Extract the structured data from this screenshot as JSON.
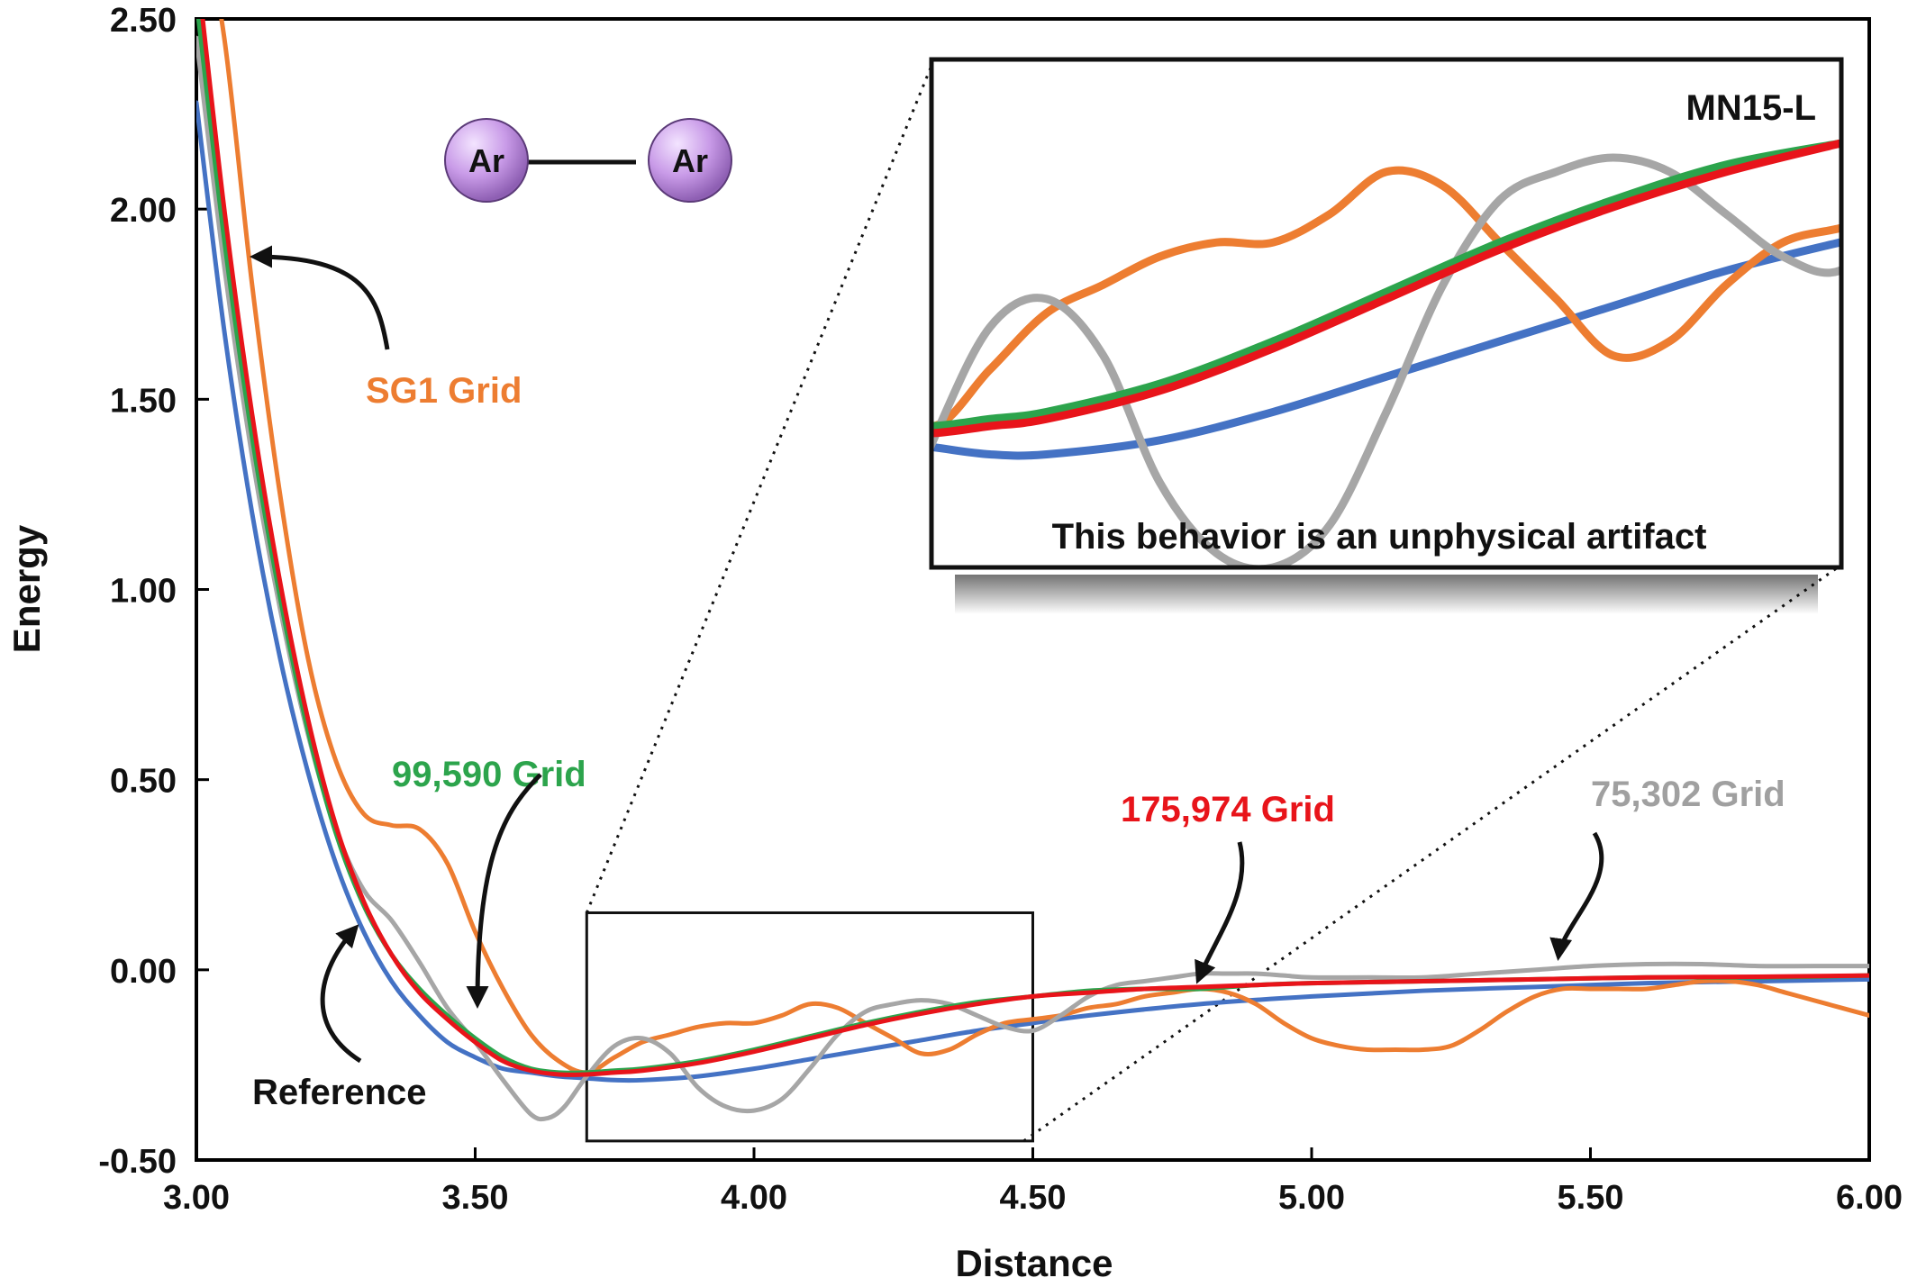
{
  "chart_data": {
    "type": "line",
    "title": "",
    "xlabel": "Distance",
    "ylabel": "Energy",
    "xlim": [
      3.0,
      6.0
    ],
    "ylim": [
      -0.5,
      2.5
    ],
    "x_ticks": [
      "3.00",
      "3.50",
      "4.00",
      "4.50",
      "5.00",
      "5.50",
      "6.00"
    ],
    "y_ticks": [
      "2.50",
      "2.00",
      "1.50",
      "1.00",
      "0.50",
      "0.00",
      "-0.50"
    ],
    "grid": false,
    "legend": "none (direct labels with arrows)",
    "series": [
      {
        "name": "Reference",
        "color": "#4472c4",
        "x": [
          3.0,
          3.05,
          3.1,
          3.15,
          3.2,
          3.25,
          3.3,
          3.35,
          3.4,
          3.45,
          3.5,
          3.55,
          3.6,
          3.65,
          3.7,
          3.75,
          3.8,
          3.9,
          4.0,
          4.1,
          4.2,
          4.3,
          4.4,
          4.5,
          4.6,
          4.8,
          5.0,
          5.2,
          5.4,
          5.6,
          5.8,
          6.0
        ],
        "y": [
          2.28,
          1.68,
          1.2,
          0.82,
          0.52,
          0.28,
          0.1,
          -0.03,
          -0.12,
          -0.19,
          -0.23,
          -0.26,
          -0.27,
          -0.28,
          -0.285,
          -0.29,
          -0.29,
          -0.28,
          -0.26,
          -0.235,
          -0.21,
          -0.185,
          -0.16,
          -0.14,
          -0.12,
          -0.09,
          -0.07,
          -0.055,
          -0.045,
          -0.035,
          -0.03,
          -0.025
        ]
      },
      {
        "name": "SG1 Grid",
        "color": "#ed7d31",
        "x": [
          3.0,
          3.05,
          3.1,
          3.15,
          3.2,
          3.25,
          3.3,
          3.35,
          3.4,
          3.45,
          3.5,
          3.55,
          3.6,
          3.65,
          3.7,
          3.75,
          3.8,
          3.85,
          3.9,
          3.95,
          4.0,
          4.05,
          4.1,
          4.15,
          4.2,
          4.25,
          4.3,
          4.35,
          4.4,
          4.45,
          4.5,
          4.55,
          4.6,
          4.65,
          4.7,
          4.75,
          4.8,
          4.85,
          4.9,
          4.95,
          5.0,
          5.05,
          5.1,
          5.15,
          5.2,
          5.25,
          5.3,
          5.35,
          5.4,
          5.45,
          5.5,
          5.55,
          5.6,
          5.65,
          5.7,
          5.75,
          5.8,
          5.85,
          5.9,
          5.95,
          6.0
        ],
        "y": [
          2.85,
          2.45,
          1.8,
          1.25,
          0.82,
          0.55,
          0.41,
          0.38,
          0.37,
          0.28,
          0.1,
          -0.05,
          -0.17,
          -0.24,
          -0.27,
          -0.23,
          -0.19,
          -0.17,
          -0.15,
          -0.14,
          -0.14,
          -0.12,
          -0.09,
          -0.1,
          -0.14,
          -0.18,
          -0.22,
          -0.21,
          -0.17,
          -0.14,
          -0.13,
          -0.12,
          -0.1,
          -0.09,
          -0.07,
          -0.06,
          -0.05,
          -0.06,
          -0.09,
          -0.14,
          -0.18,
          -0.2,
          -0.21,
          -0.21,
          -0.21,
          -0.2,
          -0.16,
          -0.11,
          -0.07,
          -0.05,
          -0.05,
          -0.05,
          -0.05,
          -0.04,
          -0.03,
          -0.03,
          -0.04,
          -0.06,
          -0.08,
          -0.1,
          -0.12
        ]
      },
      {
        "name": "75,302 Grid",
        "color": "#a6a6a6",
        "x": [
          3.0,
          3.05,
          3.1,
          3.15,
          3.2,
          3.25,
          3.3,
          3.35,
          3.4,
          3.45,
          3.5,
          3.55,
          3.6,
          3.63,
          3.66,
          3.7,
          3.75,
          3.8,
          3.85,
          3.9,
          3.95,
          4.0,
          4.05,
          4.1,
          4.15,
          4.2,
          4.25,
          4.3,
          4.35,
          4.4,
          4.45,
          4.5,
          4.55,
          4.6,
          4.65,
          4.7,
          4.75,
          4.8,
          4.85,
          4.9,
          4.95,
          5.0,
          5.1,
          5.2,
          5.3,
          5.4,
          5.5,
          5.6,
          5.7,
          5.8,
          5.9,
          6.0
        ],
        "y": [
          2.45,
          1.85,
          1.35,
          0.95,
          0.62,
          0.37,
          0.21,
          0.13,
          0.02,
          -0.1,
          -0.19,
          -0.29,
          -0.38,
          -0.39,
          -0.36,
          -0.28,
          -0.2,
          -0.18,
          -0.22,
          -0.31,
          -0.36,
          -0.37,
          -0.34,
          -0.26,
          -0.17,
          -0.11,
          -0.09,
          -0.08,
          -0.09,
          -0.12,
          -0.15,
          -0.16,
          -0.12,
          -0.07,
          -0.04,
          -0.03,
          -0.02,
          -0.01,
          -0.01,
          -0.01,
          -0.015,
          -0.02,
          -0.02,
          -0.02,
          -0.01,
          0.0,
          0.01,
          0.015,
          0.015,
          0.01,
          0.01,
          0.01
        ]
      },
      {
        "name": "99,590 Grid",
        "color": "#2ca44c",
        "x": [
          3.0,
          3.05,
          3.1,
          3.15,
          3.2,
          3.25,
          3.3,
          3.35,
          3.4,
          3.45,
          3.5,
          3.55,
          3.6,
          3.65,
          3.7,
          3.75,
          3.8,
          3.9,
          4.0,
          4.1,
          4.2,
          4.3,
          4.4,
          4.5,
          4.6,
          4.7,
          4.8,
          4.9,
          5.0,
          5.2,
          5.4,
          5.6,
          5.8,
          6.0
        ],
        "y": [
          2.55,
          1.92,
          1.4,
          0.98,
          0.63,
          0.36,
          0.17,
          0.04,
          -0.05,
          -0.12,
          -0.18,
          -0.23,
          -0.26,
          -0.27,
          -0.27,
          -0.265,
          -0.26,
          -0.24,
          -0.21,
          -0.175,
          -0.14,
          -0.11,
          -0.085,
          -0.07,
          -0.055,
          -0.05,
          -0.05,
          -0.04,
          -0.035,
          -0.03,
          -0.025,
          -0.02,
          -0.02,
          -0.015
        ]
      },
      {
        "name": "175,974 Grid",
        "color": "#e8141a",
        "x": [
          3.0,
          3.05,
          3.1,
          3.15,
          3.2,
          3.25,
          3.3,
          3.35,
          3.4,
          3.45,
          3.5,
          3.55,
          3.6,
          3.65,
          3.7,
          3.75,
          3.8,
          3.9,
          4.0,
          4.1,
          4.2,
          4.3,
          4.4,
          4.5,
          4.6,
          4.7,
          4.8,
          4.9,
          5.0,
          5.2,
          5.4,
          5.6,
          5.8,
          6.0
        ],
        "y": [
          2.65,
          2.0,
          1.46,
          1.02,
          0.66,
          0.38,
          0.18,
          0.04,
          -0.06,
          -0.13,
          -0.19,
          -0.24,
          -0.265,
          -0.275,
          -0.275,
          -0.27,
          -0.265,
          -0.245,
          -0.215,
          -0.18,
          -0.145,
          -0.115,
          -0.09,
          -0.07,
          -0.06,
          -0.05,
          -0.045,
          -0.04,
          -0.035,
          -0.03,
          -0.025,
          -0.02,
          -0.018,
          -0.015
        ]
      }
    ],
    "labels": {
      "sg1": "SG1 Grid",
      "g99590": "99,590 Grid",
      "g175974": "175,974 Grid",
      "g75302": "75,302 Grid",
      "reference": "Reference"
    },
    "molecule": {
      "atom1": "Ar",
      "atom2": "Ar"
    },
    "zoom_box": {
      "xlim": [
        3.7,
        4.5
      ],
      "ylim": [
        -0.45,
        0.15
      ]
    },
    "inset": {
      "title": "MN15-L",
      "caption": "This behavior is an unphysical artifact"
    }
  }
}
